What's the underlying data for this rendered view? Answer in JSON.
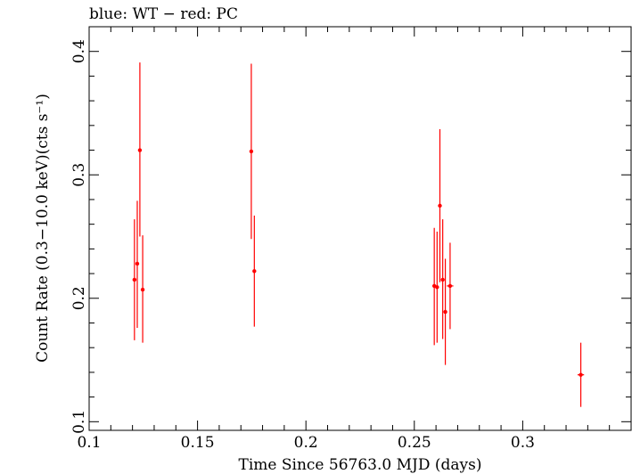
{
  "chart_data": {
    "type": "scatter",
    "title": "blue: WT − red: PC",
    "xlabel": "Time Since 56763.0 MJD (days)",
    "ylabel": "Count Rate (0.3−10.0 keV)(cts s⁻¹)",
    "xlim": [
      0.1,
      0.35
    ],
    "ylim": [
      0.093,
      0.42
    ],
    "x_ticks": [
      "0.1",
      "0.15",
      "0.2",
      "0.25",
      "0.3"
    ],
    "y_ticks": [
      "0.1",
      "0.2",
      "0.3",
      "0.4"
    ],
    "grid": false,
    "legend": "none",
    "series": [
      {
        "color": "#ff0000",
        "points": [
          {
            "x": 0.1209,
            "y": 0.215,
            "ylo": 0.166,
            "yhi": 0.264
          },
          {
            "x": 0.1222,
            "y": 0.228,
            "ylo": 0.176,
            "yhi": 0.279
          },
          {
            "x": 0.1234,
            "y": 0.32,
            "ylo": 0.25,
            "yhi": 0.391
          },
          {
            "x": 0.1247,
            "y": 0.207,
            "ylo": 0.164,
            "yhi": 0.251
          },
          {
            "x": 0.1748,
            "y": 0.319,
            "ylo": 0.248,
            "yhi": 0.39
          },
          {
            "x": 0.1762,
            "y": 0.222,
            "ylo": 0.177,
            "yhi": 0.267
          },
          {
            "x": 0.2592,
            "y": 0.21,
            "ylo": 0.162,
            "yhi": 0.257
          },
          {
            "x": 0.2605,
            "y": 0.209,
            "ylo": 0.164,
            "yhi": 0.254
          },
          {
            "x": 0.2618,
            "y": 0.275,
            "ylo": 0.213,
            "yhi": 0.337
          },
          {
            "x": 0.2631,
            "y": 0.215,
            "ylo": 0.167,
            "yhi": 0.264
          },
          {
            "x": 0.2643,
            "y": 0.189,
            "ylo": 0.146,
            "yhi": 0.232
          },
          {
            "x": 0.2665,
            "y": 0.21,
            "ylo": 0.175,
            "yhi": 0.245,
            "xerr": 0.0015
          },
          {
            "x": 0.3268,
            "y": 0.138,
            "ylo": 0.112,
            "yhi": 0.164,
            "xerr": 0.0015
          }
        ]
      }
    ]
  }
}
